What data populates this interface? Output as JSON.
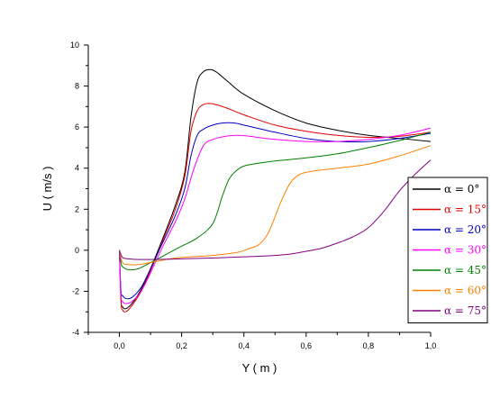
{
  "chart_data": {
    "type": "line",
    "title": "",
    "xlabel": "Y ( m )",
    "ylabel": "U ( m/s )",
    "xlim": [
      -0.1,
      1.0
    ],
    "ylim": [
      -4,
      10
    ],
    "xticks": [
      0.0,
      0.2,
      0.4,
      0.6,
      0.8,
      1.0
    ],
    "xtick_labels": [
      "0,0",
      "0,2",
      "0,4",
      "0,6",
      "0,8",
      "1,0"
    ],
    "yticks": [
      -4,
      -2,
      0,
      2,
      4,
      6,
      8,
      10
    ],
    "ytick_labels": [
      "-4",
      "-2",
      "0",
      "2",
      "4",
      "6",
      "8",
      "10"
    ],
    "grid": false,
    "legend_position": "right",
    "series": [
      {
        "name": "α = 0°",
        "color": "#000000",
        "x": [
          0.0,
          0.005,
          0.01,
          0.02,
          0.04,
          0.07,
          0.1,
          0.14,
          0.18,
          0.21,
          0.23,
          0.25,
          0.27,
          0.29,
          0.31,
          0.35,
          0.4,
          0.5,
          0.6,
          0.7,
          0.8,
          0.9,
          1.0
        ],
        "y": [
          0.0,
          -2.4,
          -2.75,
          -2.85,
          -2.6,
          -1.9,
          -0.9,
          0.6,
          2.2,
          3.8,
          6.5,
          8.2,
          8.7,
          8.8,
          8.7,
          8.2,
          7.6,
          6.8,
          6.2,
          5.85,
          5.6,
          5.45,
          5.3
        ]
      },
      {
        "name": "α = 15°",
        "color": "#e00000",
        "x": [
          0.0,
          0.005,
          0.01,
          0.02,
          0.04,
          0.07,
          0.1,
          0.14,
          0.18,
          0.21,
          0.23,
          0.25,
          0.27,
          0.29,
          0.31,
          0.35,
          0.4,
          0.5,
          0.6,
          0.7,
          0.8,
          0.9,
          1.0
        ],
        "y": [
          0.0,
          -2.5,
          -2.9,
          -3.0,
          -2.7,
          -2.0,
          -1.0,
          0.5,
          2.0,
          3.6,
          5.8,
          6.8,
          7.1,
          7.15,
          7.1,
          6.9,
          6.6,
          6.1,
          5.8,
          5.6,
          5.5,
          5.55,
          5.75
        ]
      },
      {
        "name": "α = 20°",
        "color": "#0000c0",
        "x": [
          0.0,
          0.005,
          0.01,
          0.02,
          0.04,
          0.07,
          0.1,
          0.14,
          0.18,
          0.21,
          0.23,
          0.25,
          0.27,
          0.3,
          0.33,
          0.37,
          0.4,
          0.5,
          0.6,
          0.7,
          0.8,
          0.9,
          1.0
        ],
        "y": [
          0.0,
          -2.0,
          -2.2,
          -2.35,
          -2.3,
          -1.8,
          -0.9,
          0.4,
          1.7,
          3.0,
          4.6,
          5.6,
          5.9,
          6.1,
          6.2,
          6.2,
          6.1,
          5.75,
          5.45,
          5.3,
          5.3,
          5.45,
          5.7
        ]
      },
      {
        "name": "α = 30°",
        "color": "#ff00ff",
        "x": [
          0.0,
          0.005,
          0.01,
          0.02,
          0.04,
          0.07,
          0.1,
          0.14,
          0.18,
          0.21,
          0.24,
          0.27,
          0.3,
          0.34,
          0.38,
          0.42,
          0.5,
          0.6,
          0.7,
          0.8,
          0.9,
          1.0
        ],
        "y": [
          0.0,
          -2.2,
          -2.5,
          -2.6,
          -2.5,
          -2.0,
          -1.1,
          0.2,
          1.4,
          2.5,
          4.0,
          5.1,
          5.4,
          5.55,
          5.6,
          5.55,
          5.4,
          5.3,
          5.3,
          5.4,
          5.6,
          5.95
        ]
      },
      {
        "name": "α = 45°",
        "color": "#008000",
        "x": [
          0.0,
          0.005,
          0.01,
          0.03,
          0.06,
          0.1,
          0.15,
          0.2,
          0.25,
          0.3,
          0.33,
          0.35,
          0.37,
          0.4,
          0.45,
          0.5,
          0.6,
          0.7,
          0.8,
          0.9,
          1.0
        ],
        "y": [
          0.0,
          -0.6,
          -0.8,
          -0.95,
          -0.9,
          -0.6,
          -0.2,
          0.2,
          0.6,
          1.3,
          2.6,
          3.4,
          3.8,
          4.1,
          4.25,
          4.35,
          4.5,
          4.7,
          5.0,
          5.35,
          5.75
        ]
      },
      {
        "name": "α = 60°",
        "color": "#ff8000",
        "x": [
          0.0,
          0.01,
          0.03,
          0.06,
          0.1,
          0.15,
          0.2,
          0.3,
          0.38,
          0.42,
          0.45,
          0.48,
          0.52,
          0.55,
          0.58,
          0.62,
          0.7,
          0.8,
          0.9,
          1.0
        ],
        "y": [
          0.0,
          -0.6,
          -0.7,
          -0.7,
          -0.6,
          -0.45,
          -0.35,
          -0.25,
          -0.1,
          0.1,
          0.3,
          0.9,
          2.4,
          3.3,
          3.7,
          3.85,
          4.0,
          4.2,
          4.6,
          5.1
        ]
      },
      {
        "name": "α = 75°",
        "color": "#800080",
        "x": [
          0.0,
          0.01,
          0.03,
          0.06,
          0.1,
          0.2,
          0.3,
          0.4,
          0.5,
          0.55,
          0.6,
          0.65,
          0.7,
          0.75,
          0.8,
          0.85,
          0.9,
          0.95,
          1.0
        ],
        "y": [
          0.0,
          -0.35,
          -0.42,
          -0.45,
          -0.45,
          -0.42,
          -0.38,
          -0.32,
          -0.25,
          -0.18,
          -0.05,
          0.1,
          0.35,
          0.65,
          1.1,
          1.9,
          2.9,
          3.7,
          4.4
        ]
      }
    ]
  }
}
